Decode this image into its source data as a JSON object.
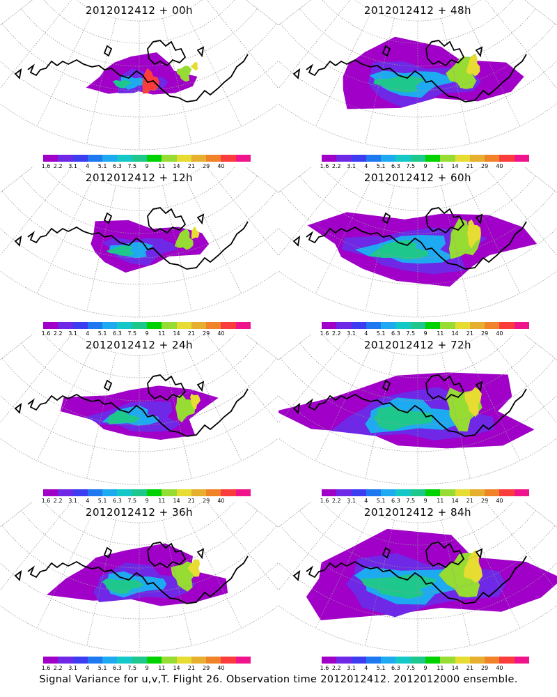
{
  "panels": [
    {
      "title": "2012012412 + 00h",
      "lead": 0
    },
    {
      "title": "2012012412 + 48h",
      "lead": 48
    },
    {
      "title": "2012012412 + 12h",
      "lead": 12
    },
    {
      "title": "2012012412 + 60h",
      "lead": 60
    },
    {
      "title": "2012012412 + 24h",
      "lead": 24
    },
    {
      "title": "2012012412 + 72h",
      "lead": 72
    },
    {
      "title": "2012012412 + 36h",
      "lead": 36
    },
    {
      "title": "2012012412 + 84h",
      "lead": 84
    }
  ],
  "colorbar": {
    "labels": [
      "1.6",
      "2.2",
      "3.1",
      "4",
      "5.1",
      "6.3",
      "7.5",
      "9",
      "11",
      "14",
      "21",
      "29",
      "40"
    ],
    "colors": [
      "#a000c8",
      "#6e28e6",
      "#3c3cf0",
      "#1e78f0",
      "#1eaaf0",
      "#14c8c8",
      "#1ec88c",
      "#00d200",
      "#96dc32",
      "#e6dc32",
      "#e6af2d",
      "#f08228",
      "#fa3c3c",
      "#f0148c"
    ]
  },
  "footer": "Signal Variance for u,v,T. Flight 26. Observation time 2012012412. 2012012000 ensemble."
}
